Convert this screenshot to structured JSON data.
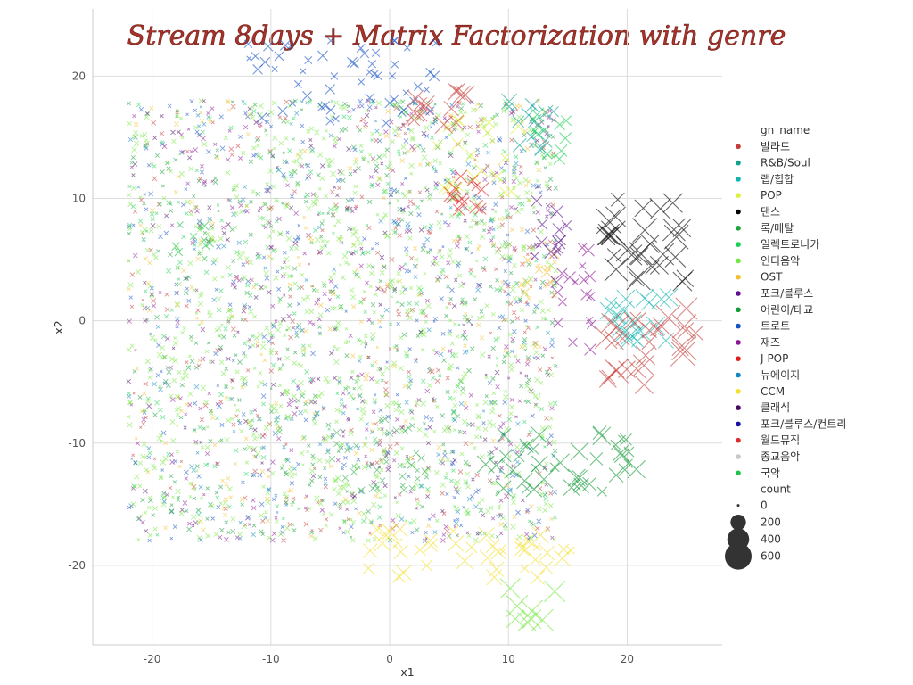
{
  "chart_data": {
    "type": "scatter",
    "title": "Stream 8days + Matrix Factorization with genre",
    "xlabel": "x1",
    "ylabel": "x2",
    "xlim": [
      -25,
      28
    ],
    "ylim": [
      -26.5,
      25.5
    ],
    "xticks": [
      -20,
      -10,
      0,
      10,
      20
    ],
    "yticks": [
      -20,
      -10,
      0,
      10,
      20
    ],
    "grid": true,
    "marker": "x",
    "legend_hue_title": "gn_name",
    "legend_size_title": "count",
    "legend_placement": "right",
    "series": [
      {
        "name": "발라드",
        "color": "#c43c39"
      },
      {
        "name": "R&B/Soul",
        "color": "#12a390"
      },
      {
        "name": "랩/힙합",
        "color": "#0fb5ae"
      },
      {
        "name": "POP",
        "color": "#dcef3a"
      },
      {
        "name": "댄스",
        "color": "#000000"
      },
      {
        "name": "록/메탈",
        "color": "#1ea33d"
      },
      {
        "name": "일렉트로니카",
        "color": "#17d254"
      },
      {
        "name": "인디음악",
        "color": "#72e83d"
      },
      {
        "name": "OST",
        "color": "#f3bf2d"
      },
      {
        "name": "포크/블루스",
        "color": "#5e1290"
      },
      {
        "name": "어린이/태교",
        "color": "#119b36"
      },
      {
        "name": "트로트",
        "color": "#1754c7"
      },
      {
        "name": "재즈",
        "color": "#8c1598"
      },
      {
        "name": "J-POP",
        "color": "#e21b1b"
      },
      {
        "name": "뉴에이지",
        "color": "#1287c2"
      },
      {
        "name": "CCM",
        "color": "#f3e02f"
      },
      {
        "name": "클래식",
        "color": "#4a0a64"
      },
      {
        "name": "포크/블루스/컨트리",
        "color": "#1a10a8"
      },
      {
        "name": "월드뮤직",
        "color": "#e22a2a"
      },
      {
        "name": "종교음악",
        "color": "#c7c7c7"
      },
      {
        "name": "국악",
        "color": "#1fc34a"
      }
    ],
    "size_legend": [
      {
        "label": "0",
        "value": 0
      },
      {
        "label": "200",
        "value": 200
      },
      {
        "label": "400",
        "value": 400
      },
      {
        "label": "600",
        "value": 600
      }
    ],
    "clusters": [
      {
        "genre": "발라드",
        "x": [
          18,
          26
        ],
        "y": [
          -6,
          1
        ],
        "n": 28,
        "count": [
          150,
          600
        ]
      },
      {
        "genre": "발라드",
        "x": [
          2,
          7
        ],
        "y": [
          15,
          19
        ],
        "n": 14,
        "count": [
          80,
          300
        ]
      },
      {
        "genre": "R&B/Soul",
        "x": [
          9,
          14
        ],
        "y": [
          14,
          18
        ],
        "n": 14,
        "count": [
          60,
          250
        ]
      },
      {
        "genre": "랩/힙합",
        "x": [
          18,
          24
        ],
        "y": [
          -2,
          2
        ],
        "n": 20,
        "count": [
          100,
          400
        ]
      },
      {
        "genre": "POP",
        "x": [
          4,
          11
        ],
        "y": [
          10,
          17
        ],
        "n": 20,
        "count": [
          50,
          200
        ]
      },
      {
        "genre": "댄스",
        "x": [
          18,
          25
        ],
        "y": [
          3,
          10
        ],
        "n": 30,
        "count": [
          150,
          600
        ]
      },
      {
        "genre": "록/메탈",
        "x": [
          -5,
          3
        ],
        "y": [
          -14,
          -8
        ],
        "n": 35,
        "count": [
          5,
          40
        ]
      },
      {
        "genre": "일렉트로니카",
        "x": [
          12,
          15
        ],
        "y": [
          13,
          17
        ],
        "n": 10,
        "count": [
          50,
          200
        ]
      },
      {
        "genre": "인디음악",
        "x": [
          10,
          14
        ],
        "y": [
          -26,
          -21
        ],
        "n": 8,
        "count": [
          200,
          500
        ]
      },
      {
        "genre": "OST",
        "x": [
          11,
          16
        ],
        "y": [
          2,
          6
        ],
        "n": 10,
        "count": [
          20,
          100
        ]
      },
      {
        "genre": "포크/블루스",
        "x": [
          12,
          15
        ],
        "y": [
          5,
          10
        ],
        "n": 12,
        "count": [
          30,
          150
        ]
      },
      {
        "genre": "어린이/태교",
        "x": [
          8,
          21
        ],
        "y": [
          -14,
          -9
        ],
        "n": 40,
        "count": [
          20,
          300
        ]
      },
      {
        "genre": "트로트",
        "x": [
          -12,
          4
        ],
        "y": [
          16,
          23
        ],
        "n": 55,
        "count": [
          5,
          80
        ]
      },
      {
        "genre": "재즈",
        "x": [
          14,
          17
        ],
        "y": [
          -3,
          6
        ],
        "n": 18,
        "count": [
          20,
          120
        ]
      },
      {
        "genre": "J-POP",
        "x": [
          5,
          8
        ],
        "y": [
          9,
          12
        ],
        "n": 12,
        "count": [
          50,
          200
        ]
      },
      {
        "genre": "CCM",
        "x": [
          -3,
          16
        ],
        "y": [
          -21,
          -17
        ],
        "n": 40,
        "count": [
          20,
          250
        ]
      },
      {
        "genre": "국악",
        "x": [
          -18,
          -15
        ],
        "y": [
          5,
          8
        ],
        "n": 10,
        "count": [
          10,
          60
        ]
      },
      {
        "genre": "인디음악",
        "x": [
          -22,
          14
        ],
        "y": [
          -18,
          18
        ],
        "n": 900,
        "count": [
          0,
          15
        ]
      },
      {
        "genre": "어린이/태교",
        "x": [
          -22,
          14
        ],
        "y": [
          -18,
          18
        ],
        "n": 350,
        "count": [
          0,
          10
        ]
      },
      {
        "genre": "트로트",
        "x": [
          -22,
          14
        ],
        "y": [
          -18,
          18
        ],
        "n": 300,
        "count": [
          0,
          10
        ]
      },
      {
        "genre": "재즈",
        "x": [
          -22,
          14
        ],
        "y": [
          -18,
          18
        ],
        "n": 300,
        "count": [
          0,
          10
        ]
      },
      {
        "genre": "발라드",
        "x": [
          -22,
          14
        ],
        "y": [
          -18,
          18
        ],
        "n": 250,
        "count": [
          0,
          10
        ]
      },
      {
        "genre": "OST",
        "x": [
          -22,
          14
        ],
        "y": [
          -18,
          18
        ],
        "n": 200,
        "count": [
          0,
          10
        ]
      },
      {
        "genre": "일렉트로니카",
        "x": [
          -22,
          14
        ],
        "y": [
          -18,
          18
        ],
        "n": 250,
        "count": [
          0,
          10
        ]
      },
      {
        "genre": "클래식",
        "x": [
          -22,
          14
        ],
        "y": [
          -18,
          18
        ],
        "n": 150,
        "count": [
          0,
          10
        ]
      },
      {
        "genre": "뉴에이지",
        "x": [
          -22,
          14
        ],
        "y": [
          -18,
          18
        ],
        "n": 150,
        "count": [
          0,
          10
        ]
      }
    ]
  }
}
